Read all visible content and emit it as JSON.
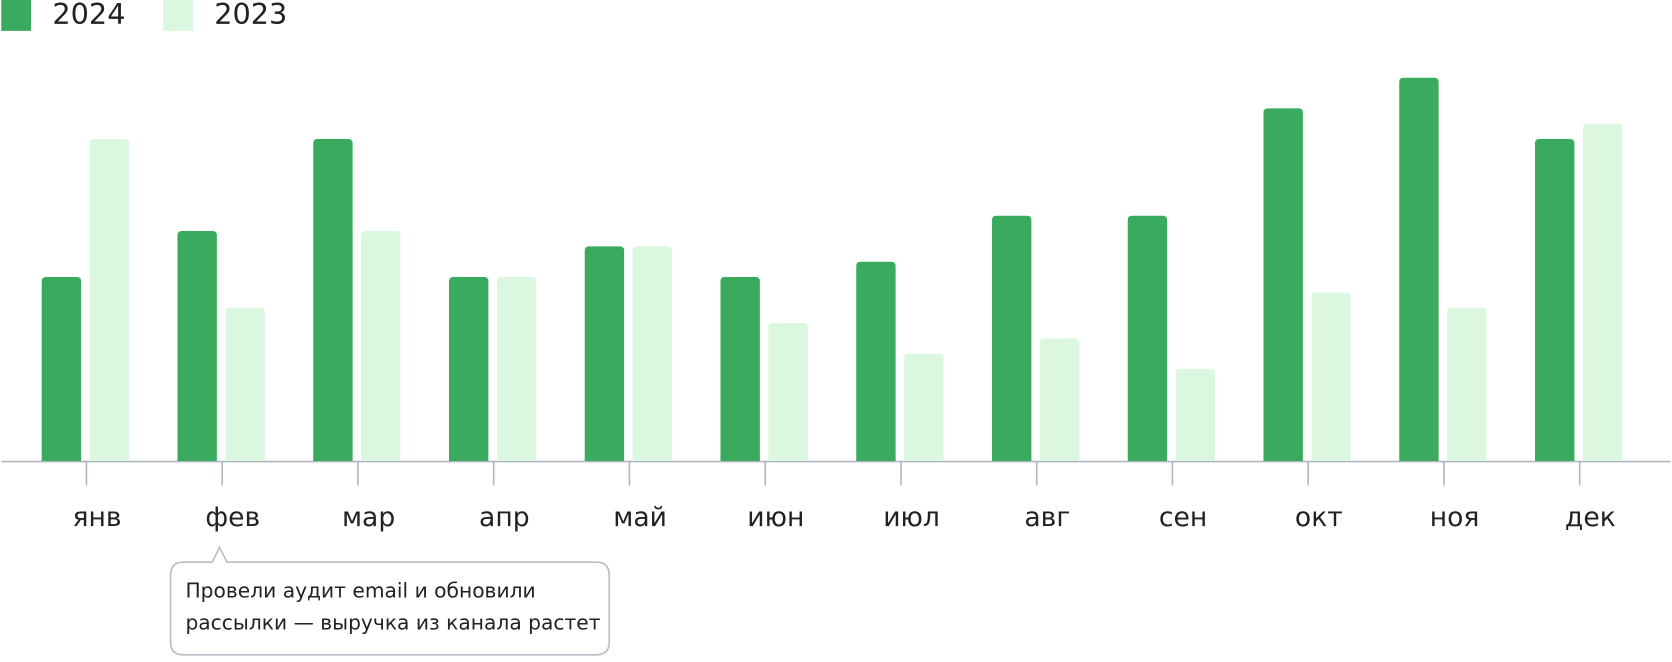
{
  "chart_data": {
    "type": "bar",
    "categories": [
      "янв",
      "фев",
      "мар",
      "апр",
      "май",
      "июн",
      "июл",
      "авг",
      "сен",
      "окт",
      "ноя",
      "дек"
    ],
    "series": [
      {
        "name": "2024",
        "color": "#3aaa5e",
        "values": [
          12,
          15,
          21,
          12,
          14,
          12,
          13,
          16,
          16,
          23,
          25,
          21
        ]
      },
      {
        "name": "2023",
        "color": "#dcf7df",
        "values": [
          21,
          10,
          15,
          12,
          14,
          9,
          7,
          8,
          6,
          11,
          10,
          22
        ]
      }
    ],
    "annotation": [
      "Провели аудит email и обновили",
      "рассылки — выручка из канала растет"
    ]
  }
}
